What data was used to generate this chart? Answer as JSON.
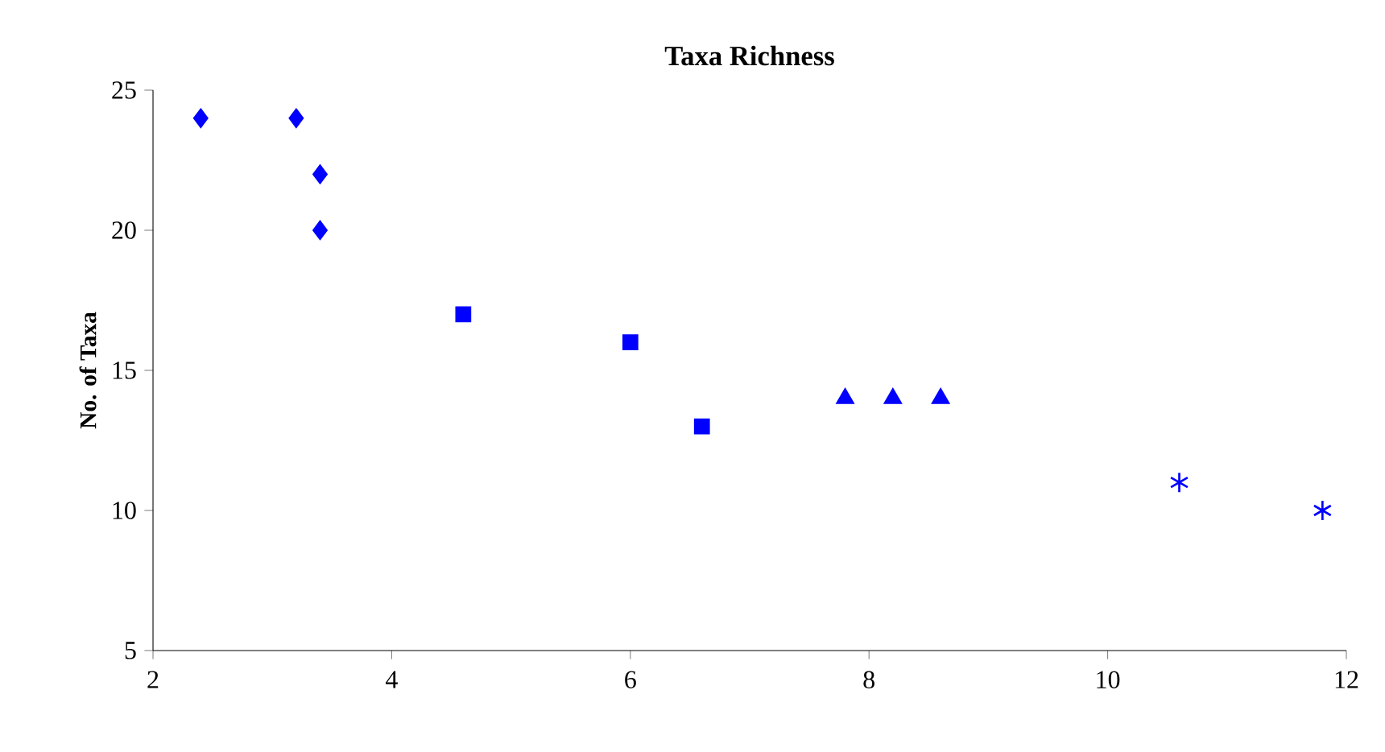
{
  "chart_data": {
    "type": "scatter",
    "title": "Taxa Richness",
    "ylabel": "No. of Taxa",
    "xlim": [
      2,
      12
    ],
    "ylim": [
      5,
      25
    ],
    "xticks": [
      2,
      4,
      6,
      8,
      10,
      12
    ],
    "yticks": [
      5,
      10,
      15,
      20,
      25
    ],
    "grid": false,
    "series": [
      {
        "color": "#0000ff",
        "marker": "diamond",
        "x": [
          2.4,
          3.2,
          3.4,
          3.4
        ],
        "values": [
          24,
          24,
          22,
          20
        ]
      },
      {
        "color": "#0000ff",
        "marker": "square",
        "x": [
          4.6,
          6,
          6.6
        ],
        "values": [
          17,
          16,
          13
        ]
      },
      {
        "color": "#0000ff",
        "marker": "triangle",
        "x": [
          7.8,
          8.2,
          8.6
        ],
        "values": [
          14,
          14,
          14
        ]
      },
      {
        "color": "#0000ff",
        "marker": "cross",
        "x": [
          10.6,
          11.8
        ],
        "values": [
          11,
          10
        ]
      }
    ]
  }
}
